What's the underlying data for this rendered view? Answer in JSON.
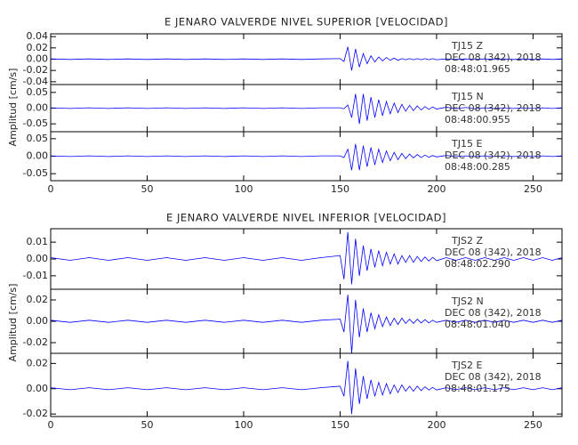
{
  "chart_data": [
    {
      "type": "line",
      "title": "E JENARO VALVERDE NIVEL SUPERIOR [VELOCIDAD]",
      "y_label": "Amplitud [cm/s]",
      "color": "#0000ff",
      "xlim": [
        0,
        265
      ],
      "xticks": [
        0,
        50,
        100,
        150,
        200,
        250
      ],
      "x": [
        0,
        10,
        20,
        30,
        40,
        50,
        60,
        70,
        80,
        90,
        100,
        110,
        120,
        130,
        140,
        150,
        152,
        154,
        156,
        158,
        160,
        162,
        164,
        166,
        168,
        170,
        172,
        174,
        176,
        178,
        180,
        182,
        184,
        186,
        188,
        190,
        192,
        194,
        196,
        198,
        200,
        205,
        210,
        215,
        220,
        225,
        230,
        235,
        240,
        245,
        250,
        255,
        260,
        265
      ],
      "panels": [
        {
          "station": "TJ15   Z",
          "date": "DEC 08 (342), 2018",
          "time": "08:48:01.965",
          "ylim": [
            -0.045,
            0.045
          ],
          "yticks": [
            -0.04,
            -0.02,
            {
              "value": 0,
              "label": "0.00"
            },
            0.02,
            0.04
          ],
          "values": [
            0.0005,
            -0.0005,
            0.0005,
            -0.0005,
            0.0005,
            -0.0005,
            0.0005,
            -0.0005,
            0.0005,
            -0.0005,
            0.0005,
            -0.0005,
            0.0005,
            -0.0005,
            0.0005,
            0.001,
            -0.004,
            0.022,
            -0.02,
            0.018,
            -0.014,
            0.01,
            -0.008,
            0.006,
            -0.005,
            0.004,
            -0.003,
            0.003,
            -0.002,
            0.002,
            -0.002,
            0.001,
            -0.001,
            0.001,
            -0.001,
            0.001,
            -0.001,
            0.001,
            -0.001,
            0.001,
            -0.001,
            0.0005,
            -0.0005,
            0.0005,
            -0.0005,
            0.0005,
            -0.0005,
            0.0005,
            -0.0005,
            0.0005,
            -0.0005,
            0.0005,
            -0.0005,
            0.0005
          ]
        },
        {
          "station": "TJ15   N",
          "date": "DEC 08 (342), 2018",
          "time": "08:48:00.955",
          "ylim": [
            -0.075,
            0.075
          ],
          "yticks": [
            -0.05,
            {
              "value": 0,
              "label": "0.00"
            },
            0.05
          ],
          "values": [
            0.001,
            -0.001,
            0.001,
            -0.001,
            0.001,
            -0.001,
            0.001,
            -0.001,
            0.001,
            -0.001,
            0.001,
            -0.001,
            0.001,
            -0.001,
            0.001,
            0.001,
            -0.002,
            0.01,
            -0.03,
            0.045,
            -0.05,
            0.045,
            -0.04,
            0.035,
            -0.03,
            0.027,
            -0.024,
            0.021,
            -0.018,
            0.016,
            -0.014,
            0.012,
            -0.01,
            0.009,
            -0.008,
            0.007,
            -0.006,
            0.005,
            -0.004,
            0.004,
            -0.003,
            0.003,
            -0.002,
            0.002,
            -0.002,
            0.001,
            -0.001,
            0.001,
            -0.001,
            0.001,
            -0.001,
            0.001,
            -0.001,
            0.001
          ]
        },
        {
          "station": "TJ15   E",
          "date": "DEC 08 (342), 2018",
          "time": "08:48:00.285",
          "ylim": [
            -0.07,
            0.07
          ],
          "yticks": [
            -0.05,
            {
              "value": 0,
              "label": "0.00"
            },
            0.05
          ],
          "values": [
            0.001,
            -0.001,
            0.001,
            -0.001,
            0.001,
            -0.001,
            0.001,
            -0.001,
            0.001,
            -0.001,
            0.001,
            -0.001,
            0.001,
            -0.001,
            0.001,
            0.001,
            -0.004,
            0.02,
            -0.04,
            0.035,
            -0.04,
            0.03,
            -0.03,
            0.025,
            -0.025,
            0.02,
            -0.018,
            0.015,
            -0.013,
            0.011,
            -0.01,
            0.008,
            -0.007,
            0.006,
            -0.005,
            0.005,
            -0.004,
            0.003,
            -0.003,
            0.002,
            -0.002,
            0.002,
            -0.001,
            0.001,
            -0.001,
            0.001,
            -0.001,
            0.001,
            -0.001,
            0.001,
            -0.001,
            0.001,
            -0.001,
            0.001
          ]
        }
      ]
    },
    {
      "type": "line",
      "title": "E JENARO VALVERDE NIVEL INFERIOR [VELOCIDAD]",
      "y_label": "Amplitud [cm/s]",
      "color": "#0000ff",
      "xlim": [
        0,
        265
      ],
      "xticks": [
        0,
        50,
        100,
        150,
        200,
        250
      ],
      "x": [
        0,
        10,
        20,
        30,
        40,
        50,
        60,
        70,
        80,
        90,
        100,
        110,
        120,
        130,
        140,
        150,
        152,
        154,
        156,
        158,
        160,
        162,
        164,
        166,
        168,
        170,
        172,
        174,
        176,
        178,
        180,
        182,
        184,
        186,
        188,
        190,
        192,
        194,
        196,
        198,
        200,
        205,
        210,
        215,
        220,
        225,
        230,
        235,
        240,
        245,
        250,
        255,
        260,
        265
      ],
      "panels": [
        {
          "station": "TJS2   Z",
          "date": "DEC 08 (342), 2018",
          "time": "08:48:02.290",
          "ylim": [
            -0.018,
            0.018
          ],
          "yticks": [
            -0.01,
            {
              "value": 0,
              "label": "0.00"
            },
            0.01
          ],
          "values": [
            0.0008,
            -0.0008,
            0.0008,
            -0.0008,
            0.0008,
            -0.0008,
            0.0008,
            -0.0008,
            0.0008,
            -0.0008,
            0.0008,
            -0.0008,
            0.0008,
            -0.0008,
            0.0008,
            0.002,
            -0.012,
            0.016,
            -0.015,
            0.012,
            -0.01,
            0.008,
            -0.007,
            0.006,
            -0.005,
            0.005,
            -0.004,
            0.004,
            -0.003,
            0.003,
            -0.003,
            0.002,
            -0.002,
            0.002,
            -0.002,
            0.0015,
            -0.0015,
            0.0012,
            -0.0012,
            0.001,
            -0.001,
            0.0008,
            -0.0008,
            0.0008,
            -0.0008,
            0.0008,
            -0.0008,
            0.0008,
            -0.0008,
            0.0008,
            -0.0008,
            0.0008,
            -0.0008,
            0.0008
          ]
        },
        {
          "station": "TJS2   N",
          "date": "DEC 08 (342), 2018",
          "time": "08:48:01.040",
          "ylim": [
            -0.03,
            0.03
          ],
          "yticks": [
            -0.02,
            {
              "value": 0,
              "label": "0.00"
            },
            0.02
          ],
          "values": [
            0.001,
            -0.001,
            0.001,
            -0.001,
            0.001,
            -0.001,
            0.001,
            -0.001,
            0.001,
            -0.001,
            0.001,
            -0.001,
            0.001,
            -0.001,
            0.001,
            0.002,
            -0.01,
            0.025,
            -0.03,
            0.02,
            -0.015,
            0.012,
            -0.01,
            0.008,
            -0.007,
            0.006,
            -0.005,
            0.004,
            -0.004,
            0.003,
            -0.003,
            0.003,
            -0.002,
            0.002,
            -0.002,
            0.002,
            -0.0015,
            0.0015,
            -0.0015,
            0.001,
            -0.001,
            0.001,
            -0.001,
            0.001,
            -0.001,
            0.001,
            -0.001,
            0.001,
            -0.001,
            0.001,
            -0.001,
            0.001,
            -0.001,
            0.001
          ]
        },
        {
          "station": "TJS2   E",
          "date": "DEC 08 (342), 2018",
          "time": "08:48:01.175",
          "ylim": [
            -0.022,
            0.028
          ],
          "yticks": [
            -0.02,
            {
              "value": 0,
              "label": "0.00"
            },
            0.02
          ],
          "values": [
            0.0008,
            -0.0008,
            0.0008,
            -0.0008,
            0.0008,
            -0.0008,
            0.0008,
            -0.0008,
            0.0008,
            -0.0008,
            0.0008,
            -0.0008,
            0.0008,
            -0.0008,
            0.0008,
            0.002,
            -0.006,
            0.022,
            -0.02,
            0.016,
            -0.012,
            0.01,
            -0.008,
            0.007,
            -0.006,
            0.005,
            -0.005,
            0.004,
            -0.004,
            0.003,
            -0.003,
            0.003,
            -0.002,
            0.002,
            -0.002,
            0.002,
            -0.0015,
            0.0015,
            -0.001,
            0.001,
            -0.001,
            0.0008,
            -0.0008,
            0.0008,
            -0.0008,
            0.0008,
            -0.0008,
            0.0008,
            -0.0008,
            0.0008,
            -0.0008,
            0.0008,
            -0.0008,
            0.0008
          ]
        }
      ]
    }
  ]
}
